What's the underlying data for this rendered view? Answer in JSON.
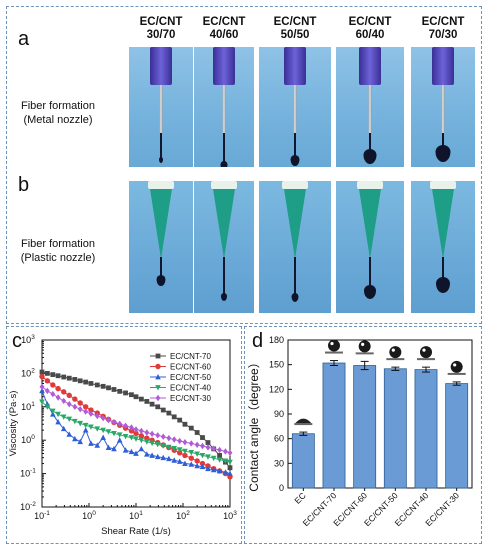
{
  "panels": {
    "a": "a",
    "b": "b",
    "c": "c",
    "d": "d"
  },
  "columns": [
    "EC/CNT\n30/70",
    "EC/CNT\n40/60",
    "EC/CNT\n50/50",
    "EC/CNT\n60/40",
    "EC/CNT\n70/30"
  ],
  "column_lines": [
    [
      "EC/CNT",
      "30/70"
    ],
    [
      "EC/CNT",
      "40/60"
    ],
    [
      "EC/CNT",
      "50/50"
    ],
    [
      "EC/CNT",
      "60/40"
    ],
    [
      "EC/CNT",
      "70/30"
    ]
  ],
  "rows": {
    "metal": [
      "Fiber formation",
      "(Metal nozzle)"
    ],
    "plastic": [
      "Fiber formation",
      "(Plastic nozzle)"
    ]
  },
  "colors": {
    "frame": "#6f93b8",
    "metal_hub": "#4b3fb0",
    "plastic_tip": "#1e9e86",
    "bar_fill": "#6a9bd4"
  },
  "chart_data": [
    {
      "type": "line",
      "panel": "c",
      "xlabel": "Shear Rate (1/s)",
      "ylabel": "Viscosity (Pa·s)",
      "x_scale": "log",
      "y_scale": "log",
      "xlim": [
        0.1,
        1000
      ],
      "ylim": [
        0.01,
        1000
      ],
      "x_ticks": [
        "10-1",
        "100",
        "101",
        "102",
        "103"
      ],
      "y_ticks": [
        "10-2",
        "10-1",
        "100",
        "101",
        "102",
        "103"
      ],
      "legend_position": "top-right",
      "series": [
        {
          "name": "EC/CNT-70",
          "color": "#4a4a4a",
          "marker": "square",
          "x": [
            0.1,
            0.13,
            0.17,
            0.22,
            0.29,
            0.38,
            0.5,
            0.65,
            0.85,
            1.1,
            1.5,
            2,
            2.6,
            3.4,
            4.5,
            6,
            8,
            10,
            13,
            17,
            22,
            29,
            38,
            50,
            65,
            85,
            110,
            150,
            200,
            260,
            340,
            450,
            600,
            800,
            1000
          ],
          "y": [
            110,
            100,
            92,
            85,
            78,
            72,
            66,
            60,
            55,
            50,
            45,
            41,
            37,
            33,
            29,
            26,
            23,
            20,
            17,
            14.5,
            12,
            10,
            8,
            6.5,
            5,
            4,
            3,
            2.3,
            1.7,
            1.2,
            0.85,
            0.55,
            0.35,
            0.22,
            0.15
          ]
        },
        {
          "name": "EC/CNT-60",
          "color": "#e03a3a",
          "marker": "circle",
          "x": [
            0.1,
            0.13,
            0.17,
            0.22,
            0.29,
            0.38,
            0.5,
            0.65,
            0.85,
            1.1,
            1.5,
            2,
            2.6,
            3.4,
            4.5,
            6,
            8,
            10,
            13,
            17,
            22,
            29,
            38,
            50,
            65,
            85,
            110,
            150,
            200,
            260,
            340,
            450,
            600,
            800,
            1000
          ],
          "y": [
            80,
            60,
            45,
            35,
            28,
            22,
            17,
            13,
            10,
            8,
            6.5,
            5.2,
            4.2,
            3.4,
            2.8,
            2.3,
            1.9,
            1.6,
            1.35,
            1.15,
            1.0,
            0.85,
            0.72,
            0.6,
            0.5,
            0.42,
            0.35,
            0.29,
            0.24,
            0.2,
            0.17,
            0.14,
            0.12,
            0.1,
            0.08
          ]
        },
        {
          "name": "EC/CNT-50",
          "color": "#2f5fd6",
          "marker": "triangle-up",
          "x": [
            0.1,
            0.13,
            0.17,
            0.22,
            0.29,
            0.38,
            0.5,
            0.65,
            0.85,
            1.1,
            1.5,
            2,
            2.6,
            3.4,
            4.5,
            6,
            8,
            10,
            13,
            17,
            22,
            29,
            38,
            50,
            65,
            85,
            110,
            150,
            200,
            260,
            340,
            450,
            600,
            800,
            1000
          ],
          "y": [
            30,
            12,
            6,
            3.5,
            2.2,
            1.5,
            1.1,
            0.9,
            2,
            0.8,
            0.7,
            1.2,
            0.6,
            0.55,
            1,
            0.5,
            0.45,
            0.4,
            0.55,
            0.38,
            0.35,
            0.32,
            0.3,
            0.28,
            0.25,
            0.23,
            0.2,
            0.19,
            0.17,
            0.16,
            0.14,
            0.13,
            0.12,
            0.11,
            0.1
          ]
        },
        {
          "name": "EC/CNT-40",
          "color": "#2aa86a",
          "marker": "triangle-down",
          "x": [
            0.1,
            0.13,
            0.17,
            0.22,
            0.29,
            0.38,
            0.5,
            0.65,
            0.85,
            1.1,
            1.5,
            2,
            2.6,
            3.4,
            4.5,
            6,
            8,
            10,
            13,
            17,
            22,
            29,
            38,
            50,
            65,
            85,
            110,
            150,
            200,
            260,
            340,
            450,
            600,
            800,
            1000
          ],
          "y": [
            14,
            10,
            7.5,
            6,
            5,
            4.3,
            3.7,
            3.2,
            2.8,
            2.5,
            2.2,
            2,
            1.8,
            1.6,
            1.45,
            1.3,
            1.2,
            1.1,
            1,
            0.9,
            0.82,
            0.75,
            0.68,
            0.62,
            0.57,
            0.52,
            0.47,
            0.43,
            0.39,
            0.35,
            0.32,
            0.29,
            0.26,
            0.24,
            0.22
          ]
        },
        {
          "name": "EC/CNT-30",
          "color": "#b05cd6",
          "marker": "diamond",
          "x": [
            0.1,
            0.13,
            0.17,
            0.22,
            0.29,
            0.38,
            0.5,
            0.65,
            0.85,
            1.1,
            1.5,
            2,
            2.6,
            3.4,
            4.5,
            6,
            8,
            10,
            13,
            17,
            22,
            29,
            38,
            50,
            65,
            85,
            110,
            150,
            200,
            260,
            340,
            450,
            600,
            800,
            1000
          ],
          "y": [
            40,
            30,
            24,
            19,
            15,
            12,
            10,
            8.5,
            7.2,
            6.2,
            5.3,
            4.6,
            4,
            3.5,
            3.1,
            2.7,
            2.4,
            2.1,
            1.9,
            1.7,
            1.55,
            1.4,
            1.27,
            1.15,
            1.05,
            0.95,
            0.87,
            0.8,
            0.73,
            0.67,
            0.61,
            0.56,
            0.51,
            0.46,
            0.42
          ]
        }
      ]
    },
    {
      "type": "bar",
      "panel": "d",
      "ylabel": "Contact angle（degree）",
      "ylim": [
        0,
        180
      ],
      "y_ticks": [
        0,
        30,
        60,
        90,
        120,
        150,
        180
      ],
      "categories": [
        "EC",
        "EC/CNT-70",
        "EC/CNT-60",
        "EC/CNT-50",
        "EC/CNT-40",
        "EC/CNT-30"
      ],
      "values": [
        66,
        152,
        149,
        145,
        144,
        127
      ],
      "errors": [
        2,
        3,
        5,
        2,
        3,
        2
      ],
      "droplet_shown": [
        true,
        true,
        true,
        true,
        true,
        true
      ]
    }
  ]
}
